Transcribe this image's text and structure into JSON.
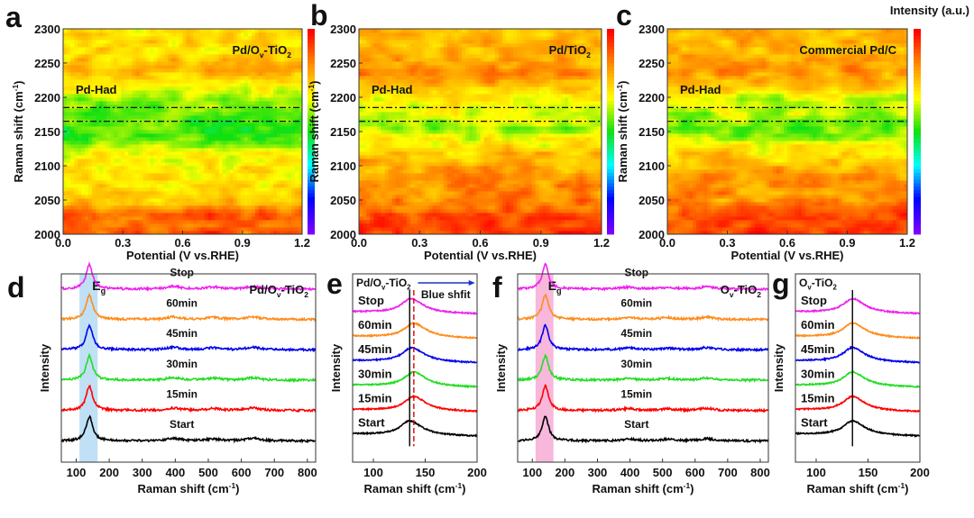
{
  "colorbar_title": "Intensity (a.u.)",
  "colormap": [
    "#7f00ff",
    "#0000ff",
    "#00ffff",
    "#10e010",
    "#ffff00",
    "#ff8c00",
    "#ff0000"
  ],
  "chart_data": [
    {
      "panel": "a",
      "type": "heatmap",
      "label": "Pd/Ov-TiO2",
      "annotation": "Pd-Had",
      "xlabel": "Potential (V vs.RHE)",
      "ylabel": "Raman shift (cm-1)",
      "xlim": [
        0,
        1.2
      ],
      "ylim": [
        2000,
        2300
      ],
      "xticks": [
        "0.0",
        "0.3",
        "0.6",
        "0.9",
        "1.2"
      ],
      "yticks": [
        "2000",
        "2050",
        "2100",
        "2150",
        "2200",
        "2250",
        "2300"
      ],
      "dashed_lines": [
        2165,
        2185
      ],
      "intensity_profile": {
        "raman_shift": [
          2000,
          2030,
          2045,
          2070,
          2120,
          2135,
          2150,
          2175,
          2195,
          2210,
          2230,
          2240,
          2260,
          2300
        ],
        "relative_intensity": [
          0.9,
          0.88,
          0.76,
          0.7,
          0.68,
          0.58,
          0.52,
          0.54,
          0.58,
          0.66,
          0.74,
          0.78,
          0.72,
          0.72
        ]
      }
    },
    {
      "panel": "b",
      "type": "heatmap",
      "label": "Pd/TiO2",
      "annotation": "Pd-Had",
      "xlabel": "Potential (V vs.RHE)",
      "ylabel": "Raman shift (cm-1)",
      "xlim": [
        0,
        1.2
      ],
      "ylim": [
        2000,
        2300
      ],
      "xticks": [
        "0.0",
        "0.3",
        "0.6",
        "0.9",
        "1.2"
      ],
      "yticks": [
        "2000",
        "2050",
        "2100",
        "2150",
        "2200",
        "2250",
        "2300"
      ],
      "dashed_lines": [
        2165,
        2185
      ],
      "intensity_profile": {
        "raman_shift": [
          2000,
          2030,
          2050,
          2090,
          2120,
          2140,
          2155,
          2175,
          2195,
          2215,
          2240,
          2260,
          2300
        ],
        "relative_intensity": [
          0.93,
          0.9,
          0.84,
          0.8,
          0.74,
          0.66,
          0.6,
          0.64,
          0.68,
          0.76,
          0.82,
          0.78,
          0.76
        ]
      }
    },
    {
      "panel": "c",
      "type": "heatmap",
      "label": "Commercial Pd/C",
      "annotation": "Pd-Had",
      "xlabel": "Potential (V vs.RHE)",
      "ylabel": "Raman shift (cm-1)",
      "xlim": [
        0,
        1.2
      ],
      "ylim": [
        2000,
        2300
      ],
      "xticks": [
        "0.0",
        "0.3",
        "0.6",
        "0.9",
        "1.2"
      ],
      "yticks": [
        "2000",
        "2050",
        "2100",
        "2150",
        "2200",
        "2250",
        "2300"
      ],
      "dashed_lines": [
        2165,
        2185
      ],
      "intensity_profile": {
        "raman_shift": [
          2000,
          2030,
          2050,
          2090,
          2120,
          2140,
          2155,
          2175,
          2195,
          2215,
          2240,
          2260,
          2300
        ],
        "relative_intensity": [
          0.93,
          0.9,
          0.82,
          0.8,
          0.72,
          0.62,
          0.56,
          0.62,
          0.62,
          0.74,
          0.82,
          0.78,
          0.76
        ]
      }
    },
    {
      "panel": "d",
      "type": "line",
      "label": "Pd/Ov-TiO2",
      "band_label": "Eg",
      "band": [
        110,
        165
      ],
      "band_color": "#bfe0f5",
      "xlabel": "Raman shift (cm-1)",
      "ylabel": "Intensity",
      "xlim": [
        55,
        825
      ],
      "xticks": [
        100,
        200,
        300,
        400,
        500,
        600,
        700,
        800
      ],
      "peaks": [
        {
          "center": 140,
          "width": 12,
          "height": 0.8
        },
        {
          "center": 395,
          "width": 25,
          "height": 0.08
        },
        {
          "center": 515,
          "width": 25,
          "height": 0.06
        },
        {
          "center": 635,
          "width": 25,
          "height": 0.08
        }
      ],
      "series": [
        {
          "name": "Start",
          "color": "#000000"
        },
        {
          "name": "15min",
          "color": "#ff0000"
        },
        {
          "name": "30min",
          "color": "#22dd22"
        },
        {
          "name": "45min",
          "color": "#0000ee"
        },
        {
          "name": "60min",
          "color": "#ff8c1a"
        },
        {
          "name": "Stop",
          "color": "#ee22ee"
        }
      ]
    },
    {
      "panel": "e",
      "type": "line",
      "label": "Pd/Ov-TiO2",
      "annotation": "Blue shfit",
      "reference_lines": [
        {
          "x": 135,
          "color": "#000000"
        },
        {
          "x": 139,
          "color": "#dd0000",
          "dashed": true
        }
      ],
      "xlabel": "Raman shift (cm-1)",
      "ylabel": "Intensity",
      "xlim": [
        80,
        200
      ],
      "xticks": [
        100,
        150,
        200
      ],
      "series": [
        {
          "name": "Start",
          "color": "#000000",
          "peak_center": 135
        },
        {
          "name": "15min",
          "color": "#ff0000",
          "peak_center": 139
        },
        {
          "name": "30min",
          "color": "#22dd22",
          "peak_center": 139
        },
        {
          "name": "45min",
          "color": "#0000ee",
          "peak_center": 137
        },
        {
          "name": "60min",
          "color": "#ff8c1a",
          "peak_center": 139
        },
        {
          "name": "Stop",
          "color": "#ee22ee",
          "peak_center": 136
        }
      ]
    },
    {
      "panel": "f",
      "type": "line",
      "label": "Ov-TiO2",
      "band_label": "Eg",
      "band": [
        110,
        165
      ],
      "band_color": "#f7b8dc",
      "xlabel": "Raman shift (cm-1)",
      "ylabel": "Intensity",
      "xlim": [
        55,
        825
      ],
      "xticks": [
        100,
        200,
        300,
        400,
        500,
        600,
        700,
        800
      ],
      "peaks": [
        {
          "center": 140,
          "width": 12,
          "height": 0.8
        },
        {
          "center": 395,
          "width": 25,
          "height": 0.06
        },
        {
          "center": 515,
          "width": 25,
          "height": 0.05
        },
        {
          "center": 635,
          "width": 25,
          "height": 0.07
        }
      ],
      "series": [
        {
          "name": "Start",
          "color": "#000000"
        },
        {
          "name": "15min",
          "color": "#ff0000"
        },
        {
          "name": "30min",
          "color": "#22dd22"
        },
        {
          "name": "45min",
          "color": "#0000ee"
        },
        {
          "name": "60min",
          "color": "#ff8c1a"
        },
        {
          "name": "Stop",
          "color": "#ee22ee"
        }
      ]
    },
    {
      "panel": "g",
      "type": "line",
      "label": "Ov-TiO2",
      "reference_lines": [
        {
          "x": 135,
          "color": "#000000"
        }
      ],
      "xlabel": "Raman shift (cm-1)",
      "ylabel": "Intensity",
      "xlim": [
        80,
        200
      ],
      "xticks": [
        100,
        150,
        200
      ],
      "series": [
        {
          "name": "Start",
          "color": "#000000",
          "peak_center": 135
        },
        {
          "name": "15min",
          "color": "#ff0000",
          "peak_center": 135
        },
        {
          "name": "30min",
          "color": "#22dd22",
          "peak_center": 135
        },
        {
          "name": "45min",
          "color": "#0000ee",
          "peak_center": 135
        },
        {
          "name": "60min",
          "color": "#ff8c1a",
          "peak_center": 135
        },
        {
          "name": "Stop",
          "color": "#ee22ee",
          "peak_center": 135
        }
      ]
    }
  ]
}
